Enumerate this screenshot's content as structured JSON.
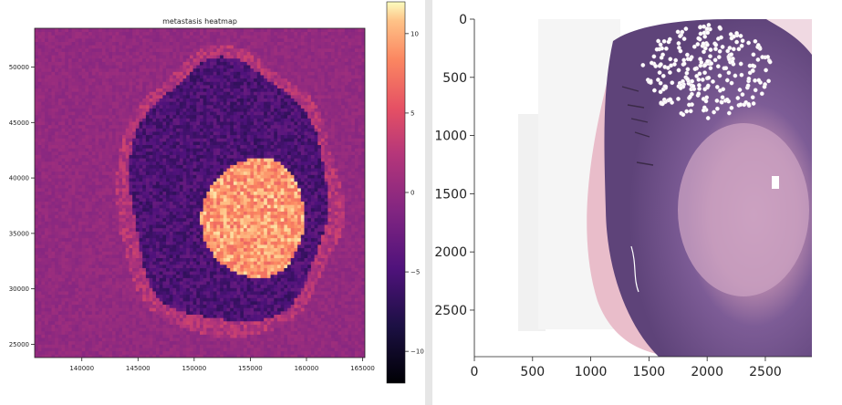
{
  "chart_data": [
    {
      "type": "heatmap",
      "title": "metastasis heatmap",
      "xlim": [
        135800,
        165200
      ],
      "ylim": [
        23800,
        53500
      ],
      "x_ticks": [
        140000,
        145000,
        150000,
        155000,
        160000,
        165000
      ],
      "y_ticks": [
        25000,
        30000,
        35000,
        40000,
        45000,
        50000
      ],
      "colormap": "magma",
      "colorbar": {
        "vmin": -12,
        "vmax": 12,
        "ticks": [
          10,
          5,
          0,
          -5,
          -10
        ],
        "tick_labels": [
          "10",
          "5",
          "0",
          "−5",
          "−10"
        ]
      },
      "regions": [
        {
          "name": "background",
          "value": 0
        },
        {
          "name": "outer-tissue-ring",
          "value": 2,
          "center": [
            153000,
            38500
          ],
          "radius_x": 10000,
          "radius_y": 13000
        },
        {
          "name": "inner-tissue",
          "value": -5,
          "center": [
            153000,
            38500
          ],
          "radius_x": 8800,
          "radius_y": 11800
        },
        {
          "name": "metastasis-core",
          "value": 9,
          "center": [
            155400,
            36400
          ],
          "radius_x": 4600,
          "radius_y": 5400
        }
      ],
      "grid": false
    },
    {
      "type": "image",
      "xlim": [
        0,
        2900
      ],
      "ylim": [
        2900,
        0
      ],
      "x_ticks": [
        0,
        500,
        1000,
        1500,
        2000,
        2500
      ],
      "y_ticks": [
        0,
        500,
        1000,
        1500,
        2000,
        2500
      ],
      "tissue_colors": {
        "paper": "#f4f4f4",
        "tissue_dark": "#6a4c84",
        "tissue_mid": "#8e6aa0",
        "tissue_light": "#c89cb8",
        "margin_pink": "#e3a8b8"
      },
      "grid": false
    }
  ]
}
